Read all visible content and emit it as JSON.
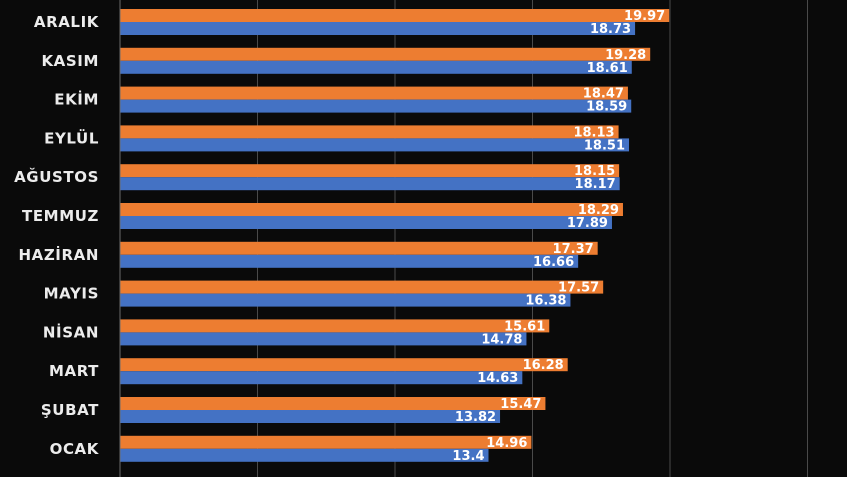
{
  "chart_data": {
    "type": "bar",
    "orientation": "horizontal",
    "title": "",
    "xlabel": "",
    "ylabel": "",
    "categories": [
      "ARALIK",
      "KASIM",
      "EKİM",
      "EYLÜL",
      "AĞUSTOS",
      "TEMMUZ",
      "HAZİRAN",
      "MAYIS",
      "NİSAN",
      "MART",
      "ŞUBAT",
      "OCAK"
    ],
    "series": [
      {
        "color": "#ED7D31",
        "values": [
          19.97,
          19.28,
          18.47,
          18.13,
          18.15,
          18.29,
          17.37,
          17.57,
          15.61,
          16.28,
          15.47,
          14.96
        ],
        "labels": [
          "19.97",
          "19.28",
          "18.47",
          "18.13",
          "18.15",
          "18.29",
          "17.37",
          "17.57",
          "15.61",
          "16.28",
          "15.47",
          "14.96"
        ]
      },
      {
        "color": "#4472C4",
        "values": [
          18.73,
          18.61,
          18.59,
          18.51,
          18.17,
          17.89,
          16.66,
          16.38,
          14.78,
          14.63,
          13.82,
          13.4
        ],
        "labels": [
          "18.73",
          "18.61",
          "18.59",
          "18.51",
          "18.17",
          "17.89",
          "16.66",
          "16.38",
          "14.78",
          "14.63",
          "13.82",
          "13.4"
        ]
      }
    ],
    "xlim": [
      0,
      25
    ],
    "grid": true,
    "legend": "none",
    "background": "#0a0a0a",
    "gridline_color": "#4a4a4a",
    "label_color": "#ececec"
  }
}
